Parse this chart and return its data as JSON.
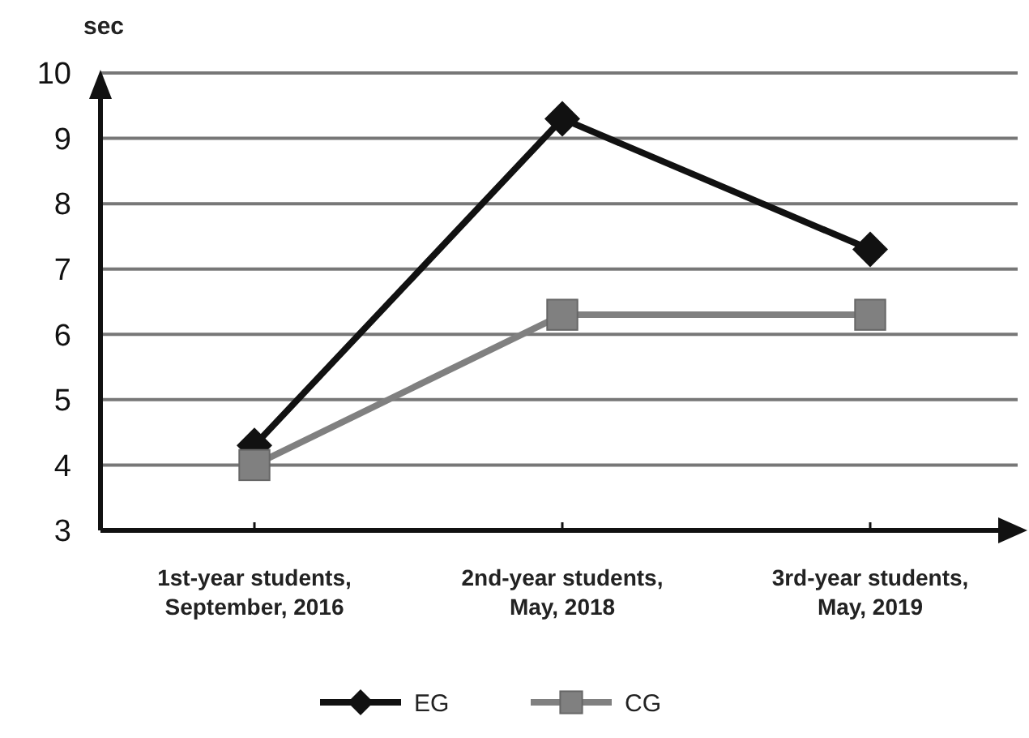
{
  "chart_data": {
    "type": "line",
    "ylabel": "sec",
    "categories": [
      "1st-year students,\nSeptember, 2016",
      "2nd-year students,\nMay, 2018",
      "3rd-year students,\nMay, 2019"
    ],
    "series": [
      {
        "name": "EG",
        "color": "#111111",
        "values": [
          4.3,
          9.3,
          7.3
        ],
        "marker": "diamond"
      },
      {
        "name": "CG",
        "color": "#808080",
        "values": [
          4.0,
          6.3,
          6.3
        ],
        "marker": "square"
      }
    ],
    "ylim": [
      3,
      10
    ],
    "yticks": [
      3,
      4,
      5,
      6,
      7,
      8,
      9,
      10
    ],
    "grid": "y",
    "legend": "bottom",
    "line_style": "solid"
  }
}
